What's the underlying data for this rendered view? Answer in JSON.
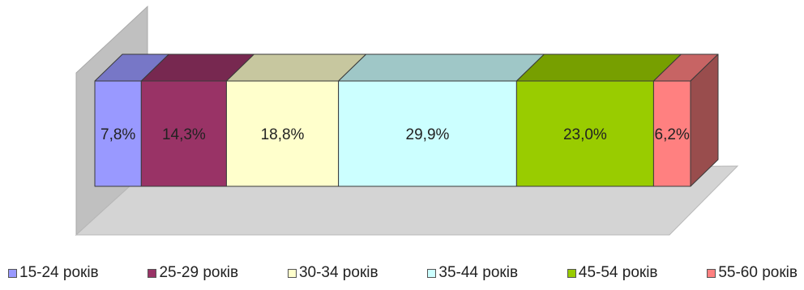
{
  "chart_data": {
    "type": "bar",
    "orientation": "horizontal",
    "stacked": true,
    "three_d": true,
    "title": "",
    "xlabel": "",
    "ylabel": "",
    "categories": [
      ""
    ],
    "series": [
      {
        "name": "15-24 років",
        "values": [
          7.8
        ],
        "label": "7,8%",
        "color": "#9999ff"
      },
      {
        "name": "25-29 років",
        "values": [
          14.3
        ],
        "label": "14,3%",
        "color": "#993366"
      },
      {
        "name": "30-34 років",
        "values": [
          18.8
        ],
        "label": "18,8%",
        "color": "#ffffcc"
      },
      {
        "name": "35-44 років",
        "values": [
          29.9
        ],
        "label": "29,9%",
        "color": "#ccffff"
      },
      {
        "name": "45-54 років",
        "values": [
          23.0
        ],
        "label": "23,0%",
        "color": "#99cc00"
      },
      {
        "name": "55-60 років",
        "values": [
          6.2
        ],
        "label": "6,2%",
        "color": "#ff8080"
      }
    ],
    "xlim": [
      0,
      100
    ],
    "grid": false,
    "legend_position": "bottom",
    "wall_color": "#c0c0c0",
    "floor_color": "#d4d4d4"
  }
}
